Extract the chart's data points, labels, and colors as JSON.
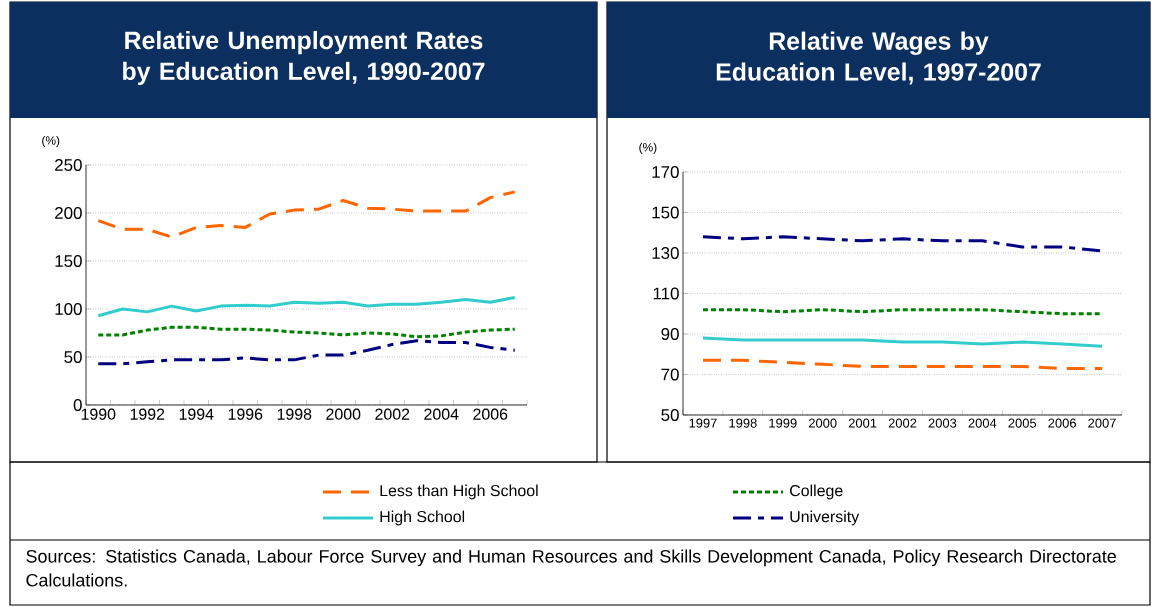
{
  "chart_data": [
    {
      "type": "line",
      "title": "Relative Unemployment Rates by Education Level, 1990-2007",
      "ylabel": "(%)",
      "categories": [
        "1990",
        null,
        "1992",
        null,
        "1994",
        null,
        "1996",
        null,
        "1998",
        null,
        "2000",
        null,
        "2002",
        null,
        "2004",
        null,
        "2006",
        null
      ],
      "series": [
        {
          "name": "Less than High School",
          "color": "#ff6600",
          "line_style": "dashed",
          "values": [
            192,
            183,
            183,
            175,
            185,
            187,
            185,
            199,
            203,
            204,
            213,
            205,
            204,
            202,
            202,
            202,
            216,
            222
          ]
        },
        {
          "name": "High School",
          "color": "#33cccc",
          "line_style": "solid",
          "values": [
            93,
            100,
            97,
            103,
            98,
            103,
            104,
            103,
            107,
            106,
            107,
            103,
            105,
            105,
            107,
            110,
            107,
            112
          ]
        },
        {
          "name": "College",
          "color": "#008000",
          "line_style": "dotted",
          "values": [
            73,
            73,
            78,
            81,
            81,
            79,
            79,
            78,
            76,
            75,
            73,
            75,
            74,
            71,
            72,
            76,
            78,
            79
          ]
        },
        {
          "name": "University",
          "color": "#000080",
          "line_style": "dashdot",
          "values": [
            43,
            43,
            45,
            47,
            47,
            47,
            49,
            47,
            47,
            52,
            52,
            57,
            63,
            67,
            65,
            65,
            60,
            57
          ]
        }
      ],
      "ylim": [
        0,
        250
      ],
      "yticks": [
        0,
        50,
        100,
        150,
        200,
        250
      ],
      "grid": "y",
      "legend": "bottom",
      "annotations": [
        "Sources: Statistics Canada, Labour Force Survey and Human Resources and Skills Development Canada, Policy Research Directorate Calculations."
      ]
    },
    {
      "type": "line",
      "title": "Relative Wages by Education Level, 1997-2007",
      "ylabel": "(%)",
      "categories": [
        "1997",
        "1998",
        "1999",
        "2000",
        "2001",
        "2002",
        "2003",
        "2004",
        "2005",
        "2006",
        "2007"
      ],
      "series": [
        {
          "color": "#ff6600",
          "line_style": "dashed",
          "values": [
            77,
            77,
            76,
            75,
            74,
            74,
            74,
            74,
            74,
            73,
            73
          ]
        },
        {
          "color": "#33cccc",
          "line_style": "solid",
          "values": [
            88,
            87,
            87,
            87,
            87,
            86,
            86,
            85,
            86,
            85,
            84
          ]
        },
        {
          "color": "#008000",
          "line_style": "dotted",
          "values": [
            102,
            102,
            101,
            102,
            101,
            102,
            102,
            102,
            101,
            100,
            100
          ]
        },
        {
          "color": "#000080",
          "line_style": "dashdot",
          "values": [
            138,
            137,
            138,
            137,
            136,
            137,
            136,
            136,
            133,
            133,
            131
          ]
        }
      ],
      "ylim": [
        50,
        170
      ],
      "yticks": [
        50,
        70,
        90,
        110,
        130,
        150,
        170
      ],
      "grid": "y"
    }
  ]
}
